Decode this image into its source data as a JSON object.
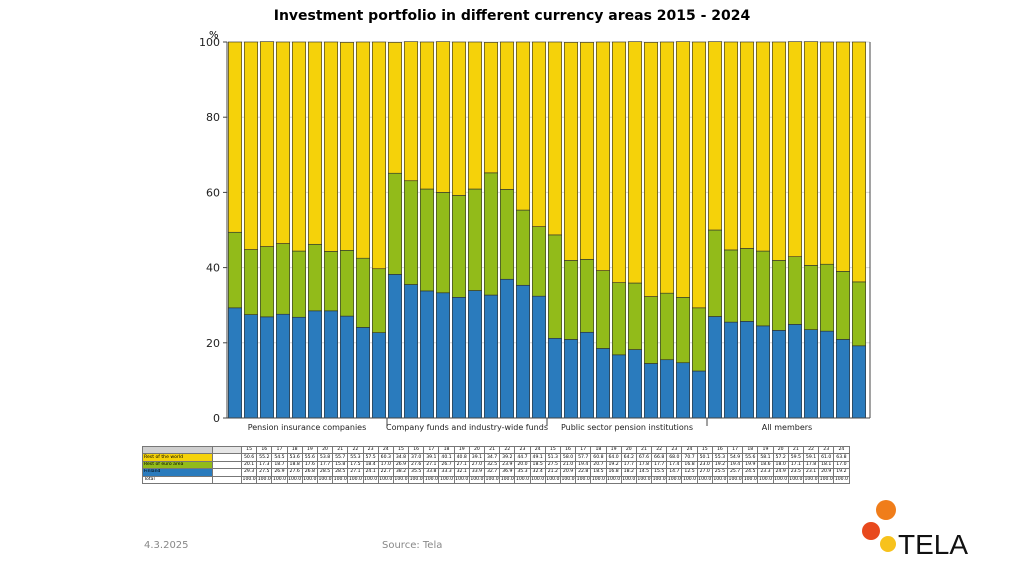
{
  "chart_data": {
    "type": "bar",
    "stacked": true,
    "title": "Investment portfolio in different currency areas 2015 - 2024",
    "ylabel": "%",
    "ylim": [
      0,
      100
    ],
    "yticks": [
      0,
      20,
      40,
      60,
      80,
      100
    ],
    "year_labels": [
      "15",
      "16",
      "17",
      "18",
      "19",
      "20",
      "21",
      "22",
      "23",
      "24"
    ],
    "groups": [
      {
        "name": "Pension insurance companies",
        "finland": [
          29.3,
          27.5,
          26.9,
          27.6,
          26.8,
          28.5,
          28.5,
          27.1,
          24.1,
          22.7
        ],
        "euro": [
          20.1,
          17.3,
          18.7,
          18.8,
          17.6,
          17.7,
          15.8,
          17.5,
          18.4,
          17.0
        ],
        "rest": [
          50.6,
          55.2,
          54.5,
          53.6,
          55.6,
          53.8,
          55.7,
          55.3,
          57.5,
          60.3
        ]
      },
      {
        "name": "Company funds and industry-wide funds",
        "finland": [
          38.2,
          35.5,
          33.8,
          33.3,
          32.1,
          33.9,
          32.7,
          36.9,
          35.3,
          32.4
        ],
        "euro": [
          26.9,
          27.6,
          27.1,
          26.7,
          27.1,
          27.0,
          32.5,
          23.9,
          20.0,
          18.5
        ],
        "rest": [
          34.8,
          37.0,
          39.1,
          40.1,
          40.8,
          39.1,
          34.7,
          39.2,
          44.7,
          49.1
        ]
      },
      {
        "name": "Public sector pension institutions",
        "finland": [
          21.2,
          20.9,
          22.8,
          18.5,
          16.8,
          18.2,
          14.5,
          15.5,
          14.7,
          12.5
        ],
        "euro": [
          27.5,
          21.0,
          19.4,
          20.7,
          19.2,
          17.7,
          17.8,
          17.7,
          17.4,
          16.8
        ],
        "rest": [
          51.3,
          58.0,
          57.7,
          60.8,
          64.0,
          64.2,
          67.6,
          66.8,
          68.0,
          70.7
        ]
      },
      {
        "name": "All members",
        "finland": [
          27.0,
          25.5,
          25.7,
          24.5,
          23.3,
          24.9,
          23.5,
          23.1,
          20.9,
          19.2
        ],
        "euro": [
          23.0,
          19.2,
          19.4,
          19.9,
          18.6,
          18.0,
          17.1,
          17.8,
          18.1,
          17.0
        ],
        "rest": [
          50.1,
          55.3,
          54.9,
          55.6,
          58.1,
          57.2,
          59.5,
          59.1,
          61.0,
          63.8
        ]
      }
    ],
    "series": [
      {
        "key": "rest",
        "name": "Rest of the world",
        "color": "#f5d20a"
      },
      {
        "key": "euro",
        "name": "Rest of euro area",
        "color": "#92bb1a"
      },
      {
        "key": "finland",
        "name": "Finland",
        "color": "#2a7bbd"
      }
    ],
    "total_label": "Total",
    "total_value": "100.0"
  },
  "footer": {
    "date": "4.3.2025",
    "source": "Source: Tela",
    "logo_text": "TELA"
  }
}
